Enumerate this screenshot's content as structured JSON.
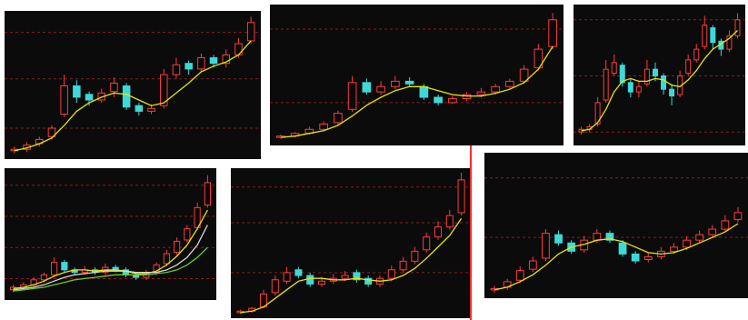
{
  "chart_data": [
    {
      "type": "candlestick",
      "ylim": [
        0,
        100
      ],
      "yticks": [
        20,
        55,
        88
      ],
      "ytick_labels": false,
      "grid": true,
      "up_color": "#ff3b3b",
      "down_color": "#3fd8d8",
      "open": [
        4,
        5,
        9,
        14,
        30,
        50,
        44,
        40,
        46,
        50,
        36,
        32,
        36,
        58,
        66,
        62,
        70,
        66,
        72,
        82
      ],
      "high": [
        7,
        10,
        14,
        22,
        58,
        54,
        46,
        48,
        56,
        52,
        38,
        37,
        62,
        70,
        68,
        73,
        72,
        76,
        84,
        99
      ],
      "low": [
        2,
        3,
        7,
        12,
        28,
        38,
        36,
        38,
        42,
        33,
        29,
        30,
        34,
        55,
        58,
        60,
        63,
        63,
        70,
        80
      ],
      "close": [
        5,
        8,
        12,
        20,
        50,
        42,
        40,
        45,
        52,
        35,
        32,
        34,
        58,
        65,
        62,
        70,
        66,
        72,
        80,
        95
      ],
      "series": [
        {
          "color": "#e6e600",
          "values": [
            4,
            6,
            9,
            13,
            22,
            32,
            38,
            42,
            45,
            44,
            40,
            36,
            38,
            45,
            52,
            60,
            64,
            67,
            72,
            82
          ]
        }
      ]
    },
    {
      "type": "candlestick",
      "ylim": [
        0,
        100
      ],
      "yticks": [
        30,
        85
      ],
      "ytick_labels": false,
      "grid": true,
      "up_color": "#ff3b3b",
      "down_color": "#3fd8d8",
      "open": [
        4,
        5,
        7,
        10,
        15,
        25,
        45,
        38,
        42,
        46,
        42,
        34,
        30,
        33,
        36,
        38,
        42,
        46,
        56,
        72
      ],
      "high": [
        6,
        8,
        12,
        16,
        24,
        50,
        48,
        46,
        50,
        49,
        44,
        36,
        35,
        38,
        41,
        44,
        48,
        58,
        74,
        97
      ],
      "low": [
        3,
        4,
        6,
        9,
        13,
        23,
        36,
        36,
        40,
        42,
        32,
        28,
        29,
        31,
        34,
        36,
        40,
        44,
        54,
        70
      ],
      "close": [
        5,
        7,
        10,
        14,
        22,
        45,
        38,
        42,
        46,
        44,
        34,
        30,
        33,
        36,
        38,
        42,
        46,
        55,
        70,
        92
      ],
      "series": [
        {
          "color": "#e6e600",
          "values": [
            4,
            5,
            7,
            9,
            13,
            20,
            28,
            34,
            39,
            42,
            42,
            39,
            36,
            35,
            35,
            37,
            40,
            45,
            55,
            72
          ]
        }
      ]
    },
    {
      "type": "candlestick",
      "ylim": [
        0,
        100
      ],
      "yticks": [
        8,
        50,
        92
      ],
      "ytick_labels": false,
      "grid": true,
      "up_color": "#ff3b3b",
      "down_color": "#3fd8d8",
      "open": [
        8,
        10,
        14,
        32,
        52,
        58,
        45,
        38,
        44,
        55,
        50,
        40,
        36,
        52,
        62,
        72,
        86,
        76,
        70,
        80
      ],
      "high": [
        12,
        14,
        34,
        62,
        66,
        60,
        48,
        46,
        62,
        60,
        52,
        44,
        54,
        66,
        74,
        95,
        88,
        78,
        84,
        97
      ],
      "low": [
        6,
        8,
        12,
        30,
        50,
        42,
        34,
        34,
        42,
        46,
        36,
        28,
        34,
        50,
        60,
        70,
        70,
        65,
        68,
        78
      ],
      "close": [
        10,
        12,
        30,
        55,
        60,
        45,
        38,
        42,
        55,
        50,
        40,
        35,
        50,
        62,
        70,
        88,
        75,
        70,
        80,
        92
      ],
      "series": [
        {
          "color": "#e6e600",
          "values": [
            9,
            10,
            15,
            25,
            38,
            46,
            48,
            46,
            46,
            48,
            47,
            43,
            42,
            47,
            54,
            63,
            70,
            74,
            78,
            84
          ]
        }
      ]
    },
    {
      "type": "candlestick",
      "ylim": [
        0,
        100
      ],
      "yticks": [
        15,
        40,
        65,
        90
      ],
      "ytick_labels": false,
      "grid": true,
      "up_color": "#ff3b3b",
      "down_color": "#3fd8d8",
      "open": [
        6,
        8,
        10,
        14,
        18,
        28,
        22,
        20,
        22,
        20,
        24,
        22,
        18,
        16,
        20,
        27,
        36,
        46,
        56,
        74
      ],
      "high": [
        10,
        12,
        16,
        20,
        32,
        30,
        24,
        25,
        24,
        27,
        26,
        24,
        20,
        22,
        28,
        38,
        48,
        58,
        76,
        98
      ],
      "low": [
        4,
        6,
        8,
        12,
        16,
        20,
        18,
        18,
        18,
        18,
        20,
        16,
        14,
        14,
        18,
        25,
        34,
        44,
        54,
        72
      ],
      "close": [
        8,
        10,
        14,
        18,
        28,
        22,
        20,
        22,
        20,
        24,
        22,
        18,
        16,
        20,
        26,
        35,
        45,
        55,
        72,
        92
      ],
      "series": [
        {
          "color": "#e6e600",
          "values": [
            7,
            8,
            10,
            13,
            17,
            20,
            22,
            22,
            21,
            22,
            22,
            21,
            19,
            19,
            21,
            26,
            33,
            42,
            55,
            70
          ]
        },
        {
          "color": "#d8d8d8",
          "values": [
            6,
            7,
            8,
            10,
            13,
            16,
            18,
            19,
            20,
            21,
            21,
            21,
            20,
            20,
            20,
            22,
            26,
            32,
            42,
            58
          ]
        },
        {
          "color": "#66cc22",
          "values": [
            5,
            6,
            7,
            8,
            10,
            12,
            14,
            15,
            16,
            17,
            18,
            18,
            18,
            18,
            19,
            20,
            22,
            26,
            32,
            40
          ]
        }
      ]
    },
    {
      "type": "candlestick",
      "ylim": [
        0,
        100
      ],
      "yticks": [
        30,
        65,
        90
      ],
      "ytick_labels": false,
      "grid": true,
      "up_color": "#ff3b3b",
      "down_color": "#3fd8d8",
      "open": [
        2,
        3,
        6,
        16,
        24,
        32,
        28,
        22,
        24,
        26,
        30,
        26,
        22,
        26,
        32,
        38,
        46,
        55,
        62,
        72
      ],
      "high": [
        4,
        6,
        18,
        28,
        34,
        34,
        30,
        27,
        29,
        31,
        32,
        28,
        28,
        35,
        41,
        48,
        58,
        66,
        74,
        100
      ],
      "low": [
        1,
        2,
        5,
        14,
        22,
        26,
        20,
        20,
        22,
        24,
        23,
        20,
        20,
        24,
        30,
        36,
        44,
        53,
        60,
        70
      ],
      "close": [
        3,
        5,
        15,
        25,
        30,
        28,
        22,
        24,
        26,
        28,
        25,
        22,
        26,
        32,
        38,
        45,
        55,
        62,
        70,
        95
      ],
      "series": [
        {
          "color": "#e6e600",
          "values": [
            2,
            3,
            6,
            12,
            18,
            24,
            26,
            26,
            25,
            25,
            26,
            25,
            24,
            25,
            28,
            33,
            40,
            48,
            56,
            68
          ]
        }
      ]
    },
    {
      "type": "candlestick",
      "ylim": [
        0,
        100
      ],
      "yticks": [
        42,
        85
      ],
      "ytick_labels": false,
      "grid": true,
      "up_color": "#ff3b3b",
      "down_color": "#3fd8d8",
      "open": [
        4,
        6,
        11,
        19,
        27,
        44,
        38,
        33,
        40,
        45,
        38,
        30,
        26,
        28,
        32,
        35,
        40,
        44,
        48,
        55
      ],
      "high": [
        7,
        12,
        21,
        28,
        48,
        47,
        40,
        43,
        48,
        47,
        40,
        32,
        31,
        35,
        38,
        43,
        47,
        51,
        58,
        64
      ],
      "low": [
        2,
        4,
        9,
        17,
        25,
        36,
        30,
        31,
        38,
        38,
        28,
        23,
        24,
        26,
        30,
        33,
        38,
        42,
        46,
        53
      ],
      "close": [
        5,
        10,
        18,
        25,
        45,
        38,
        32,
        40,
        45,
        40,
        30,
        25,
        28,
        32,
        35,
        40,
        44,
        48,
        54,
        60
      ],
      "series": [
        {
          "color": "#e6e600",
          "values": [
            4,
            6,
            10,
            15,
            22,
            30,
            35,
            37,
            40,
            41,
            39,
            35,
            31,
            30,
            31,
            34,
            38,
            42,
            46,
            52
          ]
        }
      ]
    }
  ]
}
